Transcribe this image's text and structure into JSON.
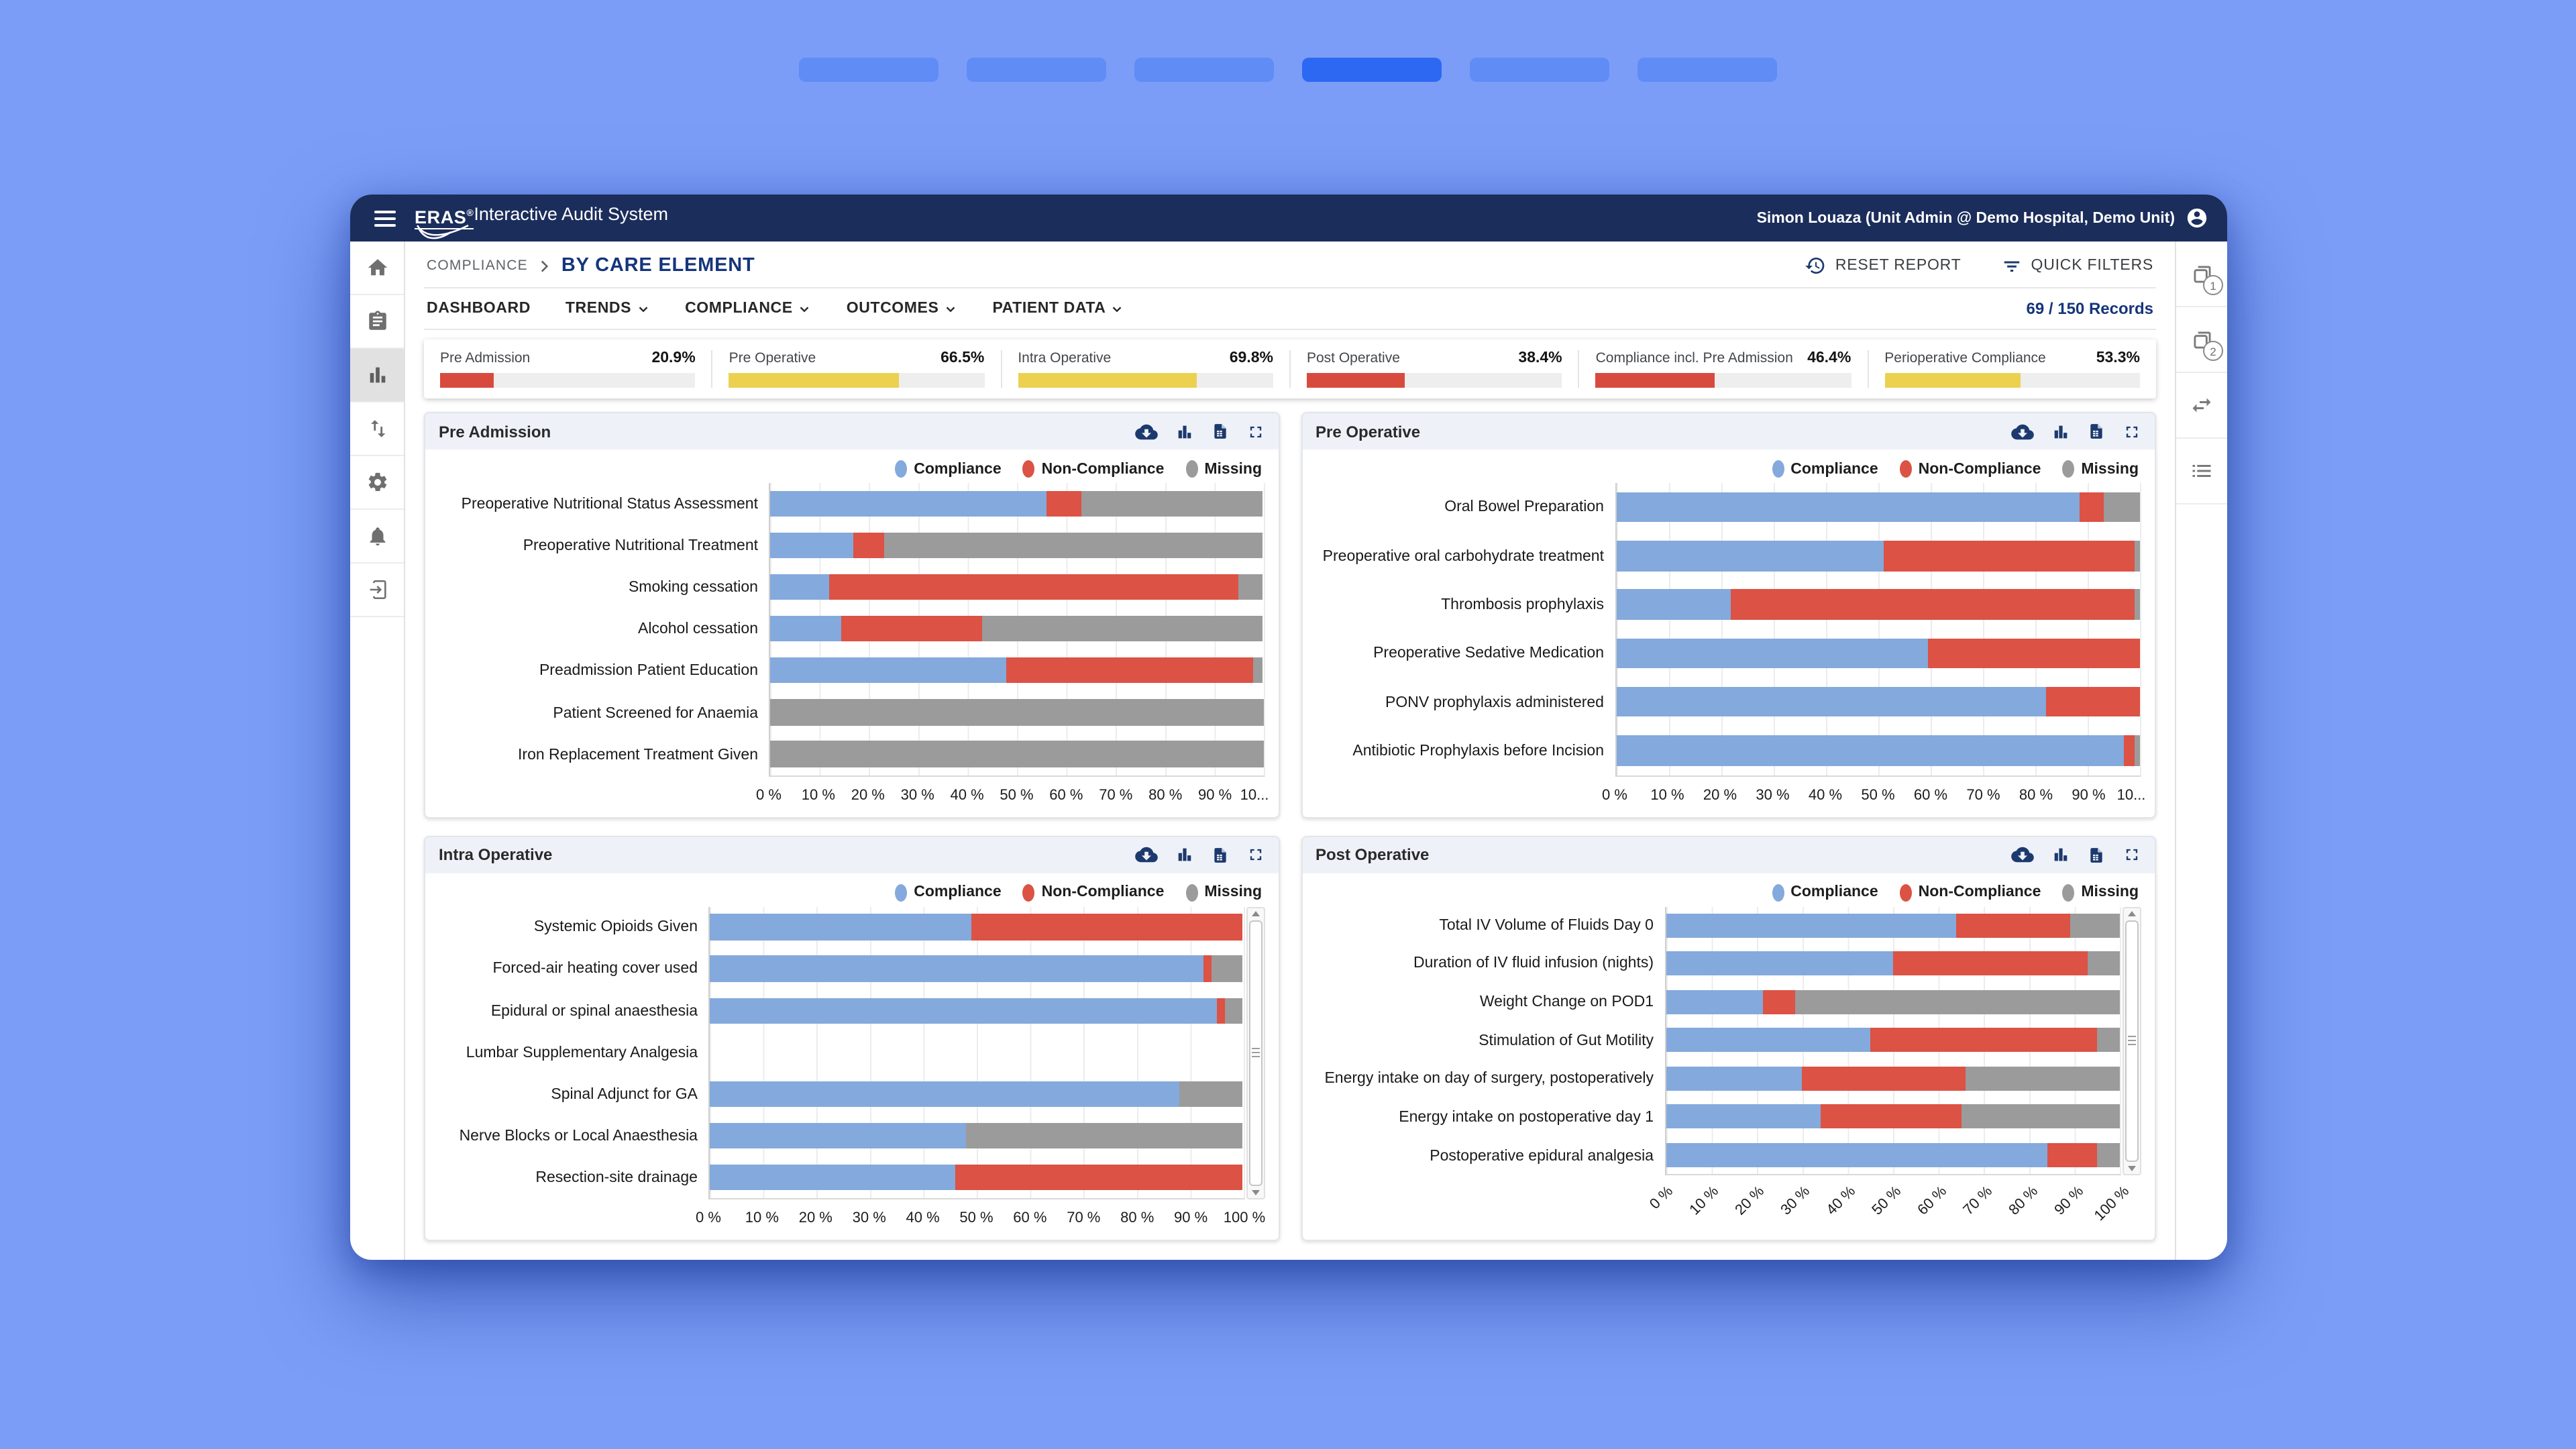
{
  "top_strip": {
    "tab_count": 6,
    "active_index": 3
  },
  "header": {
    "app_title_brand": "ERAS",
    "app_title_reg": "®",
    "app_title_rest": "Interactive Audit System",
    "user": "Simon Louaza (Unit Admin @ Demo Hospital, Demo Unit)"
  },
  "breadcrumb": {
    "section": "COMPLIANCE",
    "page": "BY CARE ELEMENT"
  },
  "toolbar": {
    "reset_label": "RESET REPORT",
    "filters_label": "QUICK FILTERS"
  },
  "nav_tabs": [
    {
      "label": "DASHBOARD",
      "has_menu": false
    },
    {
      "label": "TRENDS",
      "has_menu": true
    },
    {
      "label": "COMPLIANCE",
      "has_menu": true
    },
    {
      "label": "OUTCOMES",
      "has_menu": true
    },
    {
      "label": "PATIENT DATA",
      "has_menu": true
    }
  ],
  "records": {
    "text": "69 / 150 Records"
  },
  "summary": [
    {
      "label": "Pre Admission",
      "value": "20.9%",
      "percent": 20.9,
      "bar_color": "#d94a3e"
    },
    {
      "label": "Pre Operative",
      "value": "66.5%",
      "percent": 66.5,
      "bar_color": "#ecd150"
    },
    {
      "label": "Intra Operative",
      "value": "69.8%",
      "percent": 69.8,
      "bar_color": "#ecd150"
    },
    {
      "label": "Post Operative",
      "value": "38.4%",
      "percent": 38.4,
      "bar_color": "#d94a3e"
    },
    {
      "label": "Compliance incl. Pre Admission",
      "value": "46.4%",
      "percent": 46.4,
      "bar_color": "#d94a3e"
    },
    {
      "label": "Perioperative Compliance",
      "value": "53.3%",
      "percent": 53.3,
      "bar_color": "#ecd150"
    }
  ],
  "legend": [
    {
      "label": "Compliance",
      "color": "#84a9dc"
    },
    {
      "label": "Non-Compliance",
      "color": "#dc5244"
    },
    {
      "label": "Missing",
      "color": "#9b9b9b"
    }
  ],
  "left_rail": {
    "items": [
      "home-icon",
      "clipboard-icon",
      "bar-chart-icon",
      "swap-vertical-icon",
      "settings-icon",
      "notifications-icon",
      "exit-icon"
    ],
    "active_index": 2
  },
  "right_rail": {
    "items": [
      {
        "icon": "pages-badge-icon",
        "badge": "1"
      },
      {
        "icon": "pages-badge-icon",
        "badge": "2"
      },
      {
        "icon": "swap-horizontal-icon",
        "badge": ""
      },
      {
        "icon": "list-icon",
        "badge": ""
      }
    ]
  },
  "panel_toolbar_icons": [
    "cloud-download-icon",
    "bar-chart-icon",
    "export-file-icon",
    "fullscreen-icon"
  ],
  "colors": {
    "page_background": "#7b9df7",
    "titlebar_navy": "#1b2d5b",
    "accent_navy": "#15357c",
    "icon_navy": "#1d3a6e",
    "compliance_blue": "#84a9dc",
    "noncompliance_red": "#dc5244",
    "missing_gray": "#9b9b9b",
    "warn_yellow": "#ecd150",
    "alert_red": "#d94a3e",
    "panel_header_bg": "#eef2f8"
  },
  "chart_data": [
    {
      "type": "bar",
      "stacked": true,
      "orientation": "horizontal",
      "title": "Pre Admission",
      "categories": [
        "Preoperative Nutritional Status Assessment",
        "Preoperative Nutritional Treatment",
        "Smoking cessation",
        "Alcohol cessation",
        "Preadmission Patient Education",
        "Patient Screened for Anaemia",
        "Iron Replacement Treatment Given"
      ],
      "series": [
        {
          "name": "Compliance",
          "values": [
            56,
            17,
            12,
            14.5,
            48,
            0,
            0
          ]
        },
        {
          "name": "Non-Compliance",
          "values": [
            7,
            6,
            83,
            28.5,
            50,
            0,
            0
          ]
        },
        {
          "name": "Missing",
          "values": [
            37,
            77,
            5,
            57,
            2,
            100,
            100
          ]
        }
      ],
      "xlim": [
        0,
        100
      ],
      "x_ticks": [
        "0 %",
        "10 %",
        "20 %",
        "30 %",
        "40 %",
        "50 %",
        "60 %",
        "70 %",
        "80 %",
        "90 %",
        "10..."
      ],
      "ticks_rotated": false,
      "last_tick_truncated": true,
      "has_scrollbar": false,
      "legend_position": "top-right",
      "grid": true
    },
    {
      "type": "bar",
      "stacked": true,
      "orientation": "horizontal",
      "title": "Pre Operative",
      "categories": [
        "Oral Bowel Preparation",
        "Preoperative oral carbohydrate treatment",
        "Thrombosis prophylaxis",
        "Preoperative Sedative Medication",
        "PONV prophylaxis administered",
        "Antibiotic Prophylaxis before Incision"
      ],
      "series": [
        {
          "name": "Compliance",
          "values": [
            88.5,
            51,
            22,
            59.5,
            82,
            97
          ]
        },
        {
          "name": "Non-Compliance",
          "values": [
            4.5,
            48,
            77,
            40.5,
            18,
            2
          ]
        },
        {
          "name": "Missing",
          "values": [
            7,
            1,
            1,
            0,
            0,
            1
          ]
        }
      ],
      "xlim": [
        0,
        100
      ],
      "x_ticks": [
        "0 %",
        "10 %",
        "20 %",
        "30 %",
        "40 %",
        "50 %",
        "60 %",
        "70 %",
        "80 %",
        "90 %",
        "10..."
      ],
      "ticks_rotated": false,
      "last_tick_truncated": true,
      "has_scrollbar": false,
      "legend_position": "top-right",
      "grid": true
    },
    {
      "type": "bar",
      "stacked": true,
      "orientation": "horizontal",
      "title": "Intra Operative",
      "categories": [
        "Systemic Opioids Given",
        "Forced-air heating cover used",
        "Epidural or spinal anaesthesia",
        "Lumbar Supplementary Analgesia",
        "Spinal Adjunct for GA",
        "Nerve Blocks or Local Anaesthesia",
        "Resection-site drainage"
      ],
      "series": [
        {
          "name": "Compliance",
          "values": [
            49,
            92.5,
            95,
            0,
            88,
            48,
            46
          ]
        },
        {
          "name": "Non-Compliance",
          "values": [
            51,
            1.5,
            1.5,
            0,
            0,
            0,
            54
          ]
        },
        {
          "name": "Missing",
          "values": [
            0,
            6,
            3.5,
            0,
            12,
            52,
            0
          ]
        }
      ],
      "xlim": [
        0,
        100
      ],
      "x_ticks": [
        "0 %",
        "10 %",
        "20 %",
        "30 %",
        "40 %",
        "50 %",
        "60 %",
        "70 %",
        "80 %",
        "90 %",
        "100 %"
      ],
      "ticks_rotated": false,
      "last_tick_truncated": false,
      "has_scrollbar": true,
      "legend_position": "top-right",
      "grid": true
    },
    {
      "type": "bar",
      "stacked": true,
      "orientation": "horizontal",
      "title": "Post Operative",
      "categories": [
        "Total IV Volume of Fluids Day 0",
        "Duration of IV fluid infusion (nights)",
        "Weight Change on POD1",
        "Stimulation of Gut Motility",
        "Energy intake on day of surgery, postoperatively",
        "Energy intake on postoperative day 1",
        "Postoperative epidural analgesia"
      ],
      "series": [
        {
          "name": "Compliance",
          "values": [
            64,
            50,
            21.5,
            45,
            30,
            34,
            84
          ]
        },
        {
          "name": "Non-Compliance",
          "values": [
            25,
            43,
            7,
            50,
            36,
            31,
            11
          ]
        },
        {
          "name": "Missing",
          "values": [
            11,
            7,
            71.5,
            5,
            34,
            35,
            5
          ]
        }
      ],
      "xlim": [
        0,
        100
      ],
      "x_ticks": [
        "0 %",
        "10 %",
        "20 %",
        "30 %",
        "40 %",
        "50 %",
        "60 %",
        "70 %",
        "80 %",
        "90 %",
        "100 %"
      ],
      "ticks_rotated": true,
      "last_tick_truncated": false,
      "has_scrollbar": true,
      "legend_position": "top-right",
      "grid": true
    }
  ]
}
